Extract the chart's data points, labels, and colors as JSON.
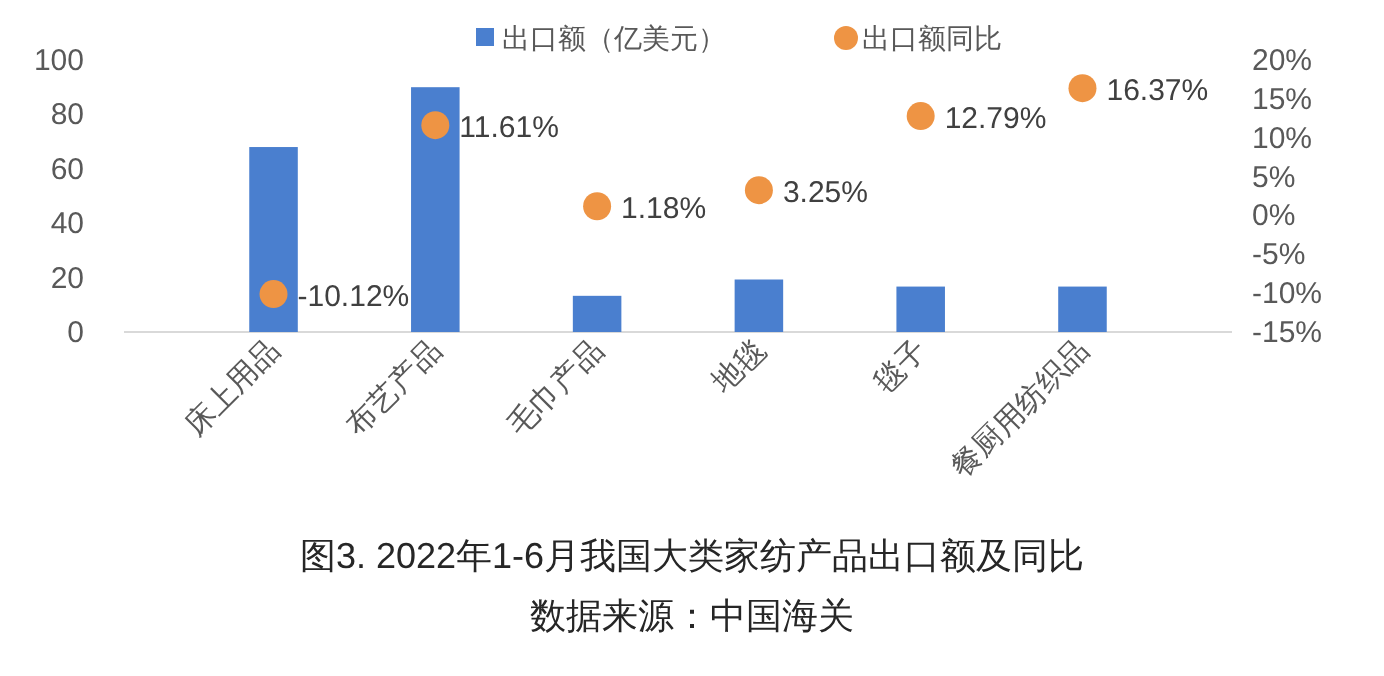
{
  "chart_data": {
    "type": "bar",
    "categories": [
      "床上用品",
      "布艺产品",
      "毛巾产品",
      "地毯",
      "毯子",
      "餐厨用纺织品"
    ],
    "series": [
      {
        "name": "出口额（亿美元）",
        "color": "#4a7fcf",
        "values": [
          68,
          90,
          13.3,
          19.3,
          16.7,
          16.7
        ]
      },
      {
        "name": "出口额同比",
        "type": "scatter",
        "axis": "y2",
        "color": "#ee9444",
        "values": [
          -10.12,
          11.61,
          1.18,
          3.25,
          12.79,
          16.37
        ],
        "value_labels": [
          "-10.12%",
          "11.61%",
          "1.18%",
          "3.25%",
          "12.79%",
          "16.37%"
        ]
      }
    ],
    "ylim": [
      0,
      100
    ],
    "yticks": [
      0,
      20,
      40,
      60,
      80,
      100
    ],
    "y2lim": [
      -15,
      20
    ],
    "y2ticks": [
      {
        "value": -15,
        "label": "-15%"
      },
      {
        "value": -10,
        "label": "-10%"
      },
      {
        "value": -5,
        "label": "-5%"
      },
      {
        "value": 0,
        "label": "0%"
      },
      {
        "value": 5,
        "label": "5%"
      },
      {
        "value": 10,
        "label": "10%"
      },
      {
        "value": 15,
        "label": "15%"
      },
      {
        "value": 20,
        "label": "20%"
      }
    ],
    "legend": "top",
    "marker": "circle",
    "annotations": [
      "图3. 2022年1-6月我国大类家纺产品出口额及同比",
      "数据来源：中国海关"
    ]
  }
}
